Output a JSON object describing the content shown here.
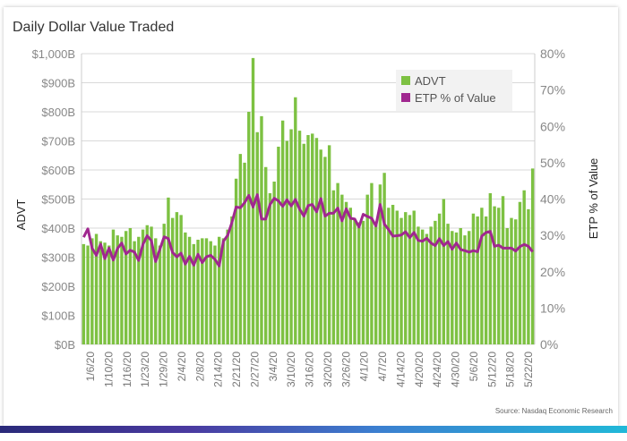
{
  "page": {
    "title": "Daily Dollar Value Traded",
    "source": "Source: Nasdaq Economic Research"
  },
  "colors": {
    "bar": "#7dc142",
    "line": "#a0278f",
    "grid": "#d9d9d9",
    "legend_bg": "#f2f2f2"
  },
  "chart_data": {
    "type": "bar+line",
    "title": "Daily Dollar Value Traded",
    "ylabel": "ADVT",
    "ylabel_right": "ETP % of Value",
    "ylim": [
      0,
      1000
    ],
    "ylim_right": [
      0,
      80
    ],
    "yticks": [
      "$0B",
      "$100B",
      "$200B",
      "$300B",
      "$400B",
      "$500B",
      "$600B",
      "$700B",
      "$800B",
      "$900B",
      "$1,000B"
    ],
    "yticks_right": [
      "0%",
      "10%",
      "20%",
      "30%",
      "40%",
      "50%",
      "60%",
      "70%",
      "80%"
    ],
    "xtick_labels": [
      "1/6/20",
      "1/10/20",
      "1/16/20",
      "1/23/20",
      "1/29/20",
      "2/4/20",
      "2/8/20",
      "2/14/20",
      "2/21/20",
      "2/27/20",
      "3/4/20",
      "3/10/20",
      "3/16/20",
      "3/20/20",
      "3/26/20",
      "4/1/20",
      "4/7/20",
      "4/14/20",
      "4/20/20",
      "4/24/20",
      "4/30/20",
      "5/6/20",
      "5/12/20",
      "5/18/20",
      "5/22/20"
    ],
    "legend": [
      "ADVT",
      "ETP % of Value"
    ],
    "legend_position": "top-right",
    "series": [
      {
        "name": "ADVT",
        "type": "bar",
        "axis": "left",
        "values": [
          345,
          340,
          365,
          380,
          355,
          350,
          340,
          395,
          375,
          370,
          390,
          400,
          355,
          370,
          395,
          410,
          405,
          365,
          340,
          415,
          505,
          435,
          455,
          445,
          385,
          370,
          345,
          360,
          365,
          365,
          355,
          340,
          370,
          365,
          395,
          440,
          570,
          655,
          625,
          800,
          985,
          730,
          785,
          610,
          520,
          560,
          680,
          770,
          700,
          740,
          850,
          735,
          690,
          720,
          725,
          710,
          670,
          645,
          685,
          530,
          555,
          515,
          490,
          470,
          430,
          420,
          425,
          515,
          555,
          410,
          550,
          590,
          470,
          480,
          460,
          435,
          455,
          445,
          460,
          405,
          395,
          380,
          405,
          425,
          450,
          500,
          415,
          390,
          385,
          400,
          375,
          390,
          450,
          440,
          470,
          440,
          520,
          475,
          470,
          510,
          400,
          435,
          430,
          490,
          530,
          465,
          605
        ]
      },
      {
        "name": "ETP % of Value",
        "type": "line",
        "axis": "right",
        "values": [
          29.5,
          31.8,
          26.5,
          24.5,
          27.6,
          23.6,
          26.5,
          23.2,
          26.4,
          27.9,
          24.9,
          25.9,
          25.4,
          23.1,
          27.5,
          29.9,
          28.5,
          22.8,
          26.2,
          29.6,
          29.1,
          25.3,
          24.1,
          25.1,
          22.1,
          24.2,
          21.8,
          24.8,
          22.5,
          24.1,
          24.5,
          23.4,
          21.6,
          28.4,
          30.0,
          33.5,
          37.8,
          37.6,
          39.0,
          41.0,
          37.8,
          41.2,
          34.5,
          34.5,
          38.5,
          40.2,
          39.5,
          38.0,
          39.8,
          38.1,
          39.9,
          37.2,
          35.3,
          38.2,
          38.5,
          36.5,
          40.1,
          35.3,
          36.1,
          36.1,
          37.5,
          34.0,
          37.3,
          34.7,
          34.5,
          32.3,
          35.8,
          35.2,
          34.7,
          32.6,
          38.5,
          33.1,
          31.6,
          29.8,
          29.9,
          30.1,
          31.0,
          29.4,
          30.8,
          28.6,
          28.4,
          29.2,
          27.9,
          27.2,
          29.1,
          27.2,
          28.3,
          26.2,
          27.9,
          26.1,
          25.8,
          25.4,
          25.8,
          25.5,
          29.8,
          30.8,
          31.1,
          27.0,
          27.3,
          26.5,
          26.5,
          26.5,
          25.7,
          26.9,
          27.5,
          27.0,
          25.5
        ]
      }
    ]
  }
}
